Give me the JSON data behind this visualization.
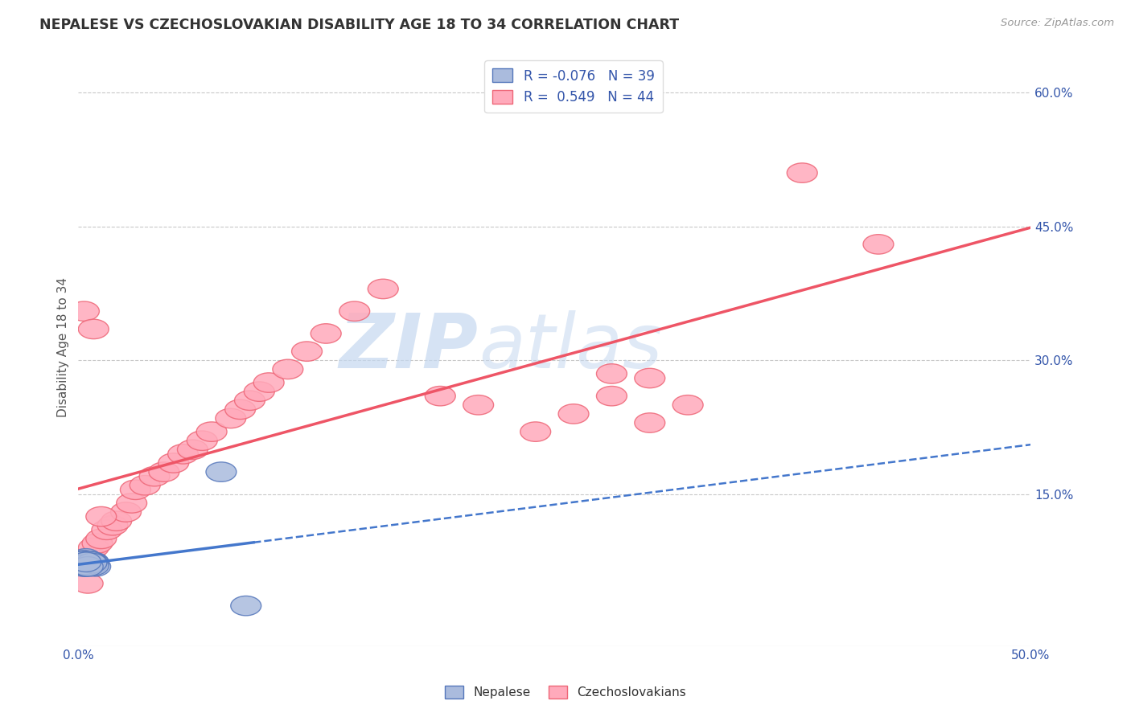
{
  "title": "NEPALESE VS CZECHOSLOVAKIAN DISABILITY AGE 18 TO 34 CORRELATION CHART",
  "source_text": "Source: ZipAtlas.com",
  "ylabel": "Disability Age 18 to 34",
  "xlim": [
    0.0,
    0.5
  ],
  "ylim": [
    -0.02,
    0.65
  ],
  "yticks_right": [
    0.15,
    0.3,
    0.45,
    0.6
  ],
  "ytick_right_labels": [
    "15.0%",
    "30.0%",
    "45.0%",
    "60.0%"
  ],
  "grid_color": "#c8c8c8",
  "background_color": "#ffffff",
  "nepalese_fill": "#aabbdd",
  "nepalese_edge": "#5577bb",
  "czechoslovakian_fill": "#ffaabb",
  "czechoslovakian_edge": "#ee6677",
  "nepalese_line_color": "#4477cc",
  "czechoslovakian_line_color": "#ee5566",
  "legend_r1": "R = -0.076",
  "legend_n1": "N = 39",
  "legend_r2": "R =  0.549",
  "legend_n2": "N = 44",
  "watermark_zip": "ZIP",
  "watermark_atlas": "atlas",
  "title_color": "#333333",
  "source_color": "#999999",
  "axis_label_color": "#555555",
  "tick_color": "#3355aa",
  "nepalese_x": [
    0.002,
    0.003,
    0.004,
    0.005,
    0.006,
    0.007,
    0.008,
    0.009,
    0.003,
    0.004,
    0.005,
    0.006,
    0.007,
    0.008,
    0.003,
    0.005,
    0.006,
    0.004,
    0.002,
    0.007,
    0.004,
    0.005,
    0.006,
    0.003,
    0.008,
    0.006,
    0.005,
    0.004,
    0.003,
    0.007,
    0.005,
    0.004,
    0.006,
    0.003,
    0.007,
    0.005,
    0.004,
    0.075,
    0.088
  ],
  "nepalese_y": [
    0.075,
    0.072,
    0.078,
    0.07,
    0.073,
    0.071,
    0.074,
    0.069,
    0.076,
    0.072,
    0.07,
    0.075,
    0.071,
    0.073,
    0.069,
    0.074,
    0.072,
    0.07,
    0.075,
    0.071,
    0.073,
    0.069,
    0.074,
    0.072,
    0.07,
    0.075,
    0.071,
    0.073,
    0.069,
    0.074,
    0.072,
    0.07,
    0.075,
    0.071,
    0.073,
    0.069,
    0.074,
    0.175,
    0.025
  ],
  "czechoslovakian_x": [
    0.003,
    0.006,
    0.008,
    0.01,
    0.012,
    0.015,
    0.018,
    0.02,
    0.025,
    0.028,
    0.03,
    0.035,
    0.04,
    0.045,
    0.05,
    0.055,
    0.06,
    0.065,
    0.07,
    0.08,
    0.085,
    0.09,
    0.095,
    0.1,
    0.11,
    0.12,
    0.13,
    0.145,
    0.16,
    0.19,
    0.21,
    0.24,
    0.26,
    0.28,
    0.3,
    0.32,
    0.38,
    0.42,
    0.003,
    0.008,
    0.012,
    0.005,
    0.28,
    0.3
  ],
  "czechoslovakian_y": [
    0.075,
    0.08,
    0.09,
    0.095,
    0.1,
    0.11,
    0.115,
    0.12,
    0.13,
    0.14,
    0.155,
    0.16,
    0.17,
    0.175,
    0.185,
    0.195,
    0.2,
    0.21,
    0.22,
    0.235,
    0.245,
    0.255,
    0.265,
    0.275,
    0.29,
    0.31,
    0.33,
    0.355,
    0.38,
    0.26,
    0.25,
    0.22,
    0.24,
    0.26,
    0.23,
    0.25,
    0.51,
    0.43,
    0.355,
    0.335,
    0.125,
    0.05,
    0.285,
    0.28
  ]
}
